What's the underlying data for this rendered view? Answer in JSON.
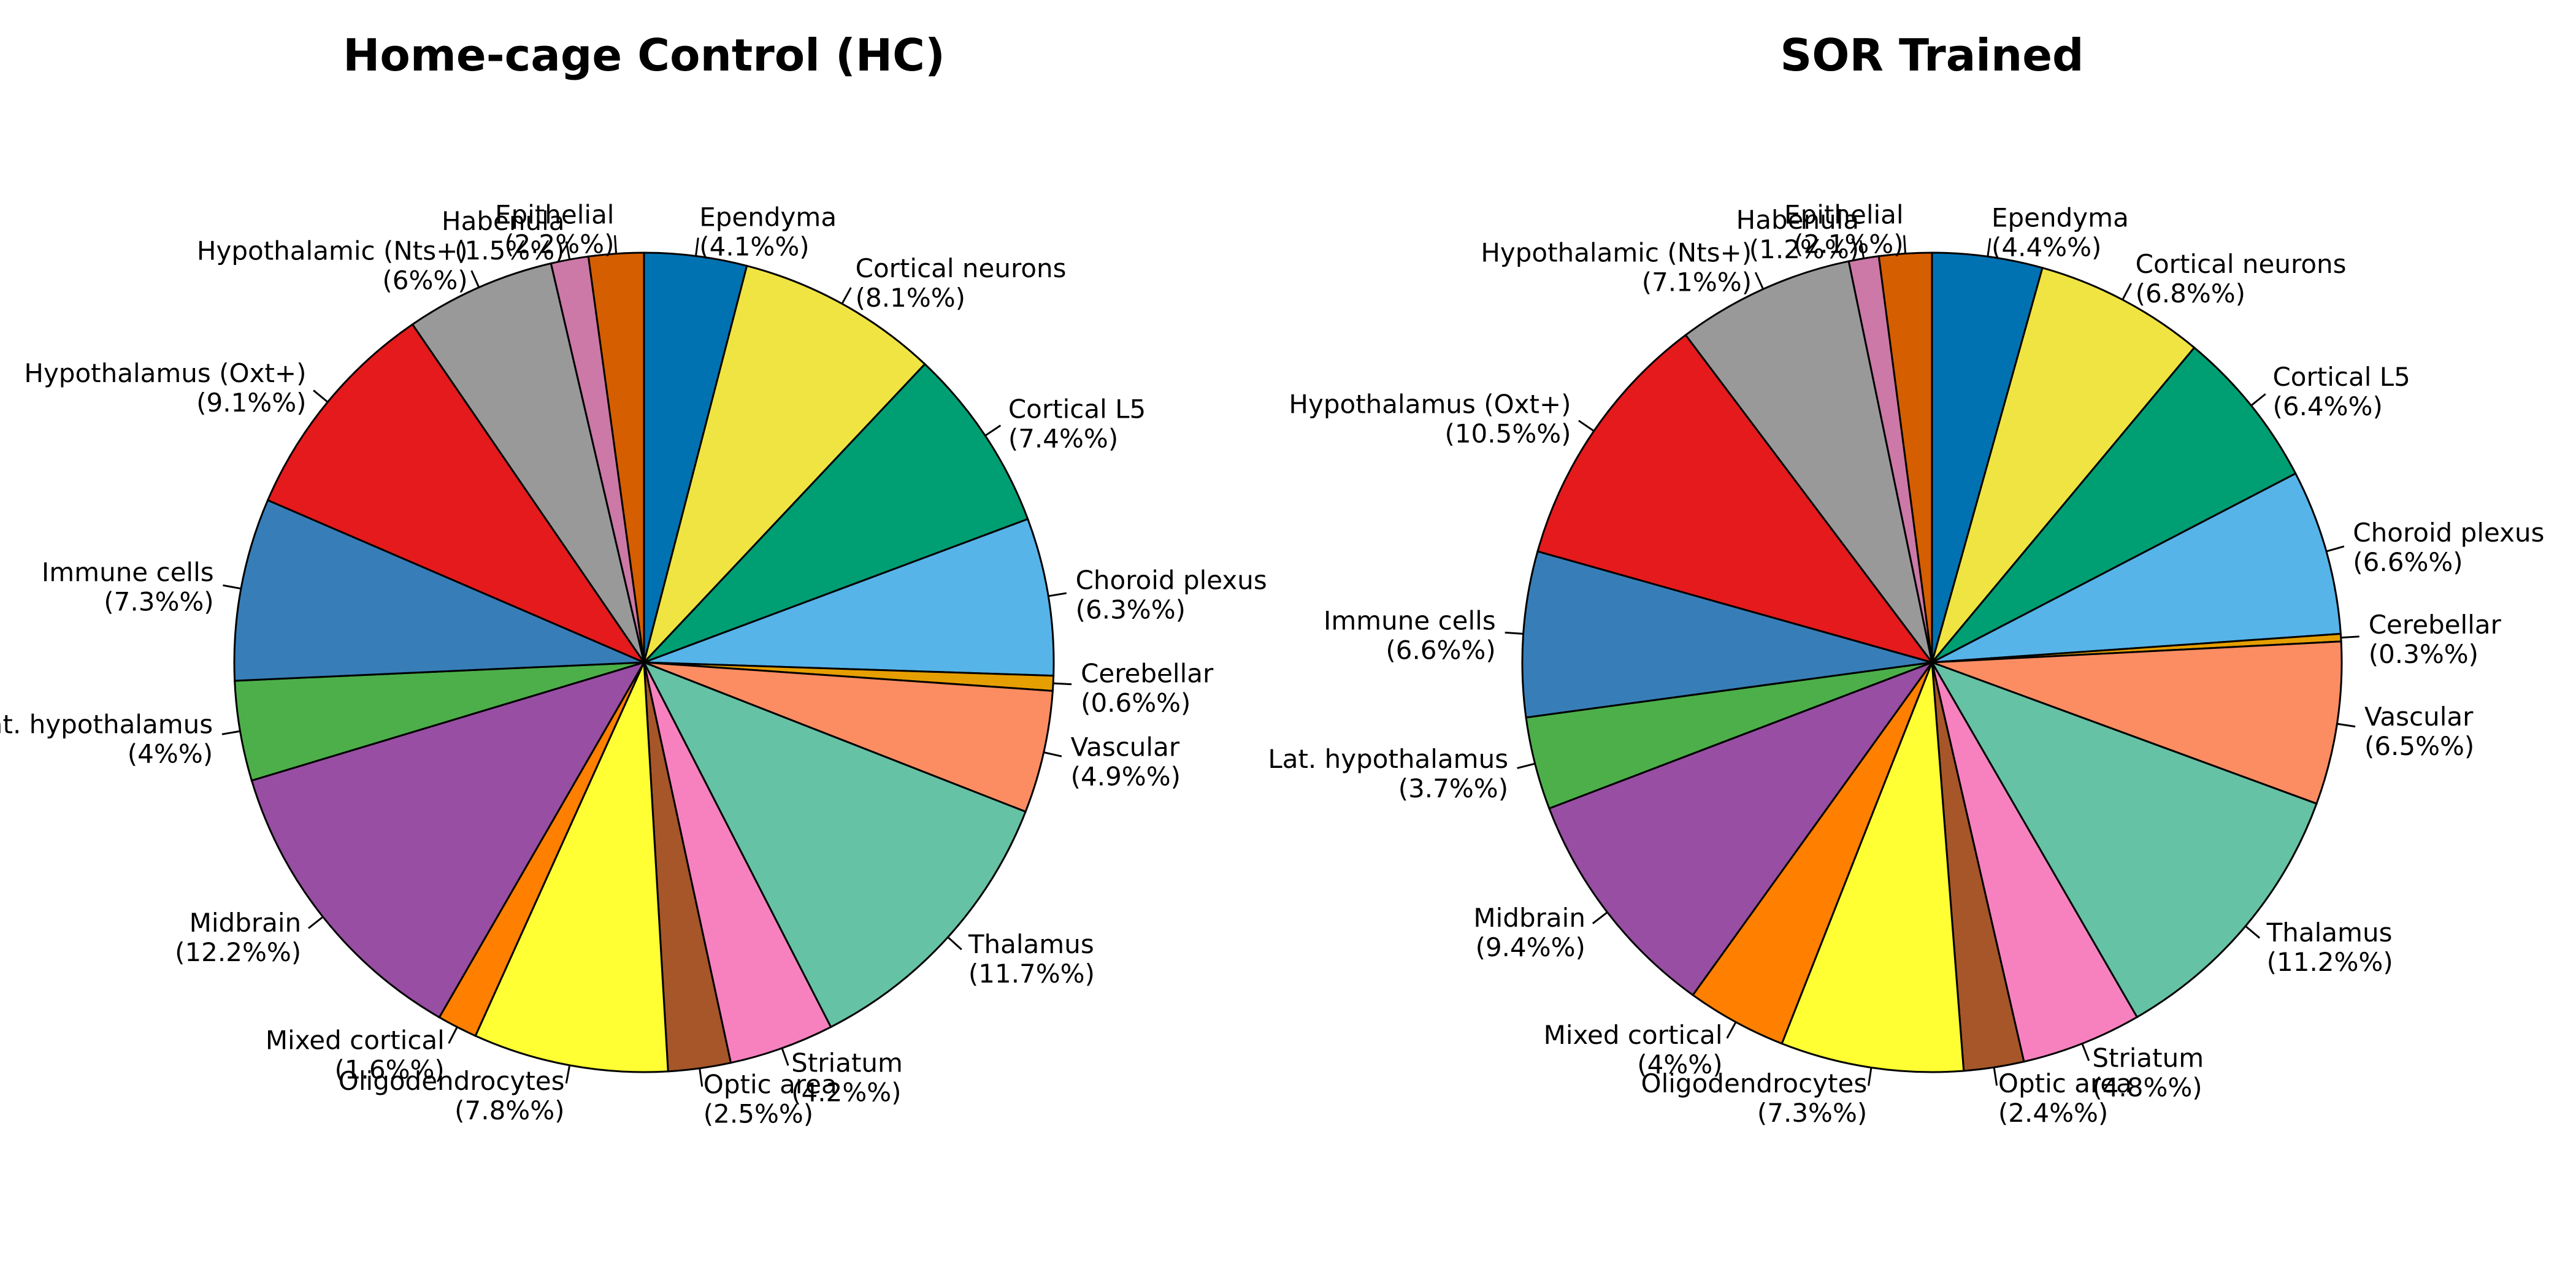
{
  "chart_data": [
    {
      "type": "pie",
      "title": "Home-cage Control (HC)",
      "slices": [
        {
          "label": "Ependyma",
          "value": 4.1,
          "pct_text": "(4.1%%)",
          "color": "#0072b2"
        },
        {
          "label": "Cortical neurons",
          "value": 8.1,
          "pct_text": "(8.1%%)",
          "color": "#f0e442"
        },
        {
          "label": "Cortical L5",
          "value": 7.4,
          "pct_text": "(7.4%%)",
          "color": "#009e73"
        },
        {
          "label": "Choroid plexus",
          "value": 6.3,
          "pct_text": "(6.3%%)",
          "color": "#56b4e9"
        },
        {
          "label": "Cerebellar",
          "value": 0.6,
          "pct_text": "(0.6%%)",
          "color": "#e69f00"
        },
        {
          "label": "Vascular",
          "value": 4.9,
          "pct_text": "(4.9%%)",
          "color": "#fc8d62"
        },
        {
          "label": "Thalamus",
          "value": 11.7,
          "pct_text": "(11.7%%)",
          "color": "#66c2a5"
        },
        {
          "label": "Striatum",
          "value": 4.2,
          "pct_text": "(4.2%%)",
          "color": "#f781bf"
        },
        {
          "label": "Optic area",
          "value": 2.5,
          "pct_text": "(2.5%%)",
          "color": "#a65628"
        },
        {
          "label": "Oligodendrocytes",
          "value": 7.8,
          "pct_text": "(7.8%%)",
          "color": "#ffff33"
        },
        {
          "label": "Mixed cortical",
          "value": 1.6,
          "pct_text": "(1.6%%)",
          "color": "#ff7f00"
        },
        {
          "label": "Midbrain",
          "value": 12.2,
          "pct_text": "(12.2%%)",
          "color": "#984ea3"
        },
        {
          "label": "Lat. hypothalamus",
          "value": 4.0,
          "pct_text": "(4%%)",
          "color": "#4daf4a"
        },
        {
          "label": "Immune cells",
          "value": 7.3,
          "pct_text": "(7.3%%)",
          "color": "#377eb8"
        },
        {
          "label": "Hypothalamus (Oxt+)",
          "value": 9.1,
          "pct_text": "(9.1%%)",
          "color": "#e41a1c"
        },
        {
          "label": "Hypothalamic (Nts+)",
          "value": 6.0,
          "pct_text": "(6%%)",
          "color": "#999999"
        },
        {
          "label": "Habenula",
          "value": 1.5,
          "pct_text": "(1.5%%)",
          "color": "#cc79a7"
        },
        {
          "label": "Epithelial",
          "value": 2.2,
          "pct_text": "(2.2%%)",
          "color": "#d55e00"
        }
      ]
    },
    {
      "type": "pie",
      "title": "SOR Trained",
      "slices": [
        {
          "label": "Ependyma",
          "value": 4.4,
          "pct_text": "(4.4%%)",
          "color": "#0072b2"
        },
        {
          "label": "Cortical neurons",
          "value": 6.8,
          "pct_text": "(6.8%%)",
          "color": "#f0e442"
        },
        {
          "label": "Cortical L5",
          "value": 6.4,
          "pct_text": "(6.4%%)",
          "color": "#009e73"
        },
        {
          "label": "Choroid plexus",
          "value": 6.6,
          "pct_text": "(6.6%%)",
          "color": "#56b4e9"
        },
        {
          "label": "Cerebellar",
          "value": 0.3,
          "pct_text": "(0.3%%)",
          "color": "#e69f00"
        },
        {
          "label": "Vascular",
          "value": 6.5,
          "pct_text": "(6.5%%)",
          "color": "#fc8d62"
        },
        {
          "label": "Thalamus",
          "value": 11.2,
          "pct_text": "(11.2%%)",
          "color": "#66c2a5"
        },
        {
          "label": "Striatum",
          "value": 4.8,
          "pct_text": "(4.8%%)",
          "color": "#f781bf"
        },
        {
          "label": "Optic area",
          "value": 2.4,
          "pct_text": "(2.4%%)",
          "color": "#a65628"
        },
        {
          "label": "Oligodendrocytes",
          "value": 7.3,
          "pct_text": "(7.3%%)",
          "color": "#ffff33"
        },
        {
          "label": "Mixed cortical",
          "value": 4.0,
          "pct_text": "(4%%)",
          "color": "#ff7f00"
        },
        {
          "label": "Midbrain",
          "value": 9.4,
          "pct_text": "(9.4%%)",
          "color": "#984ea3"
        },
        {
          "label": "Lat. hypothalamus",
          "value": 3.7,
          "pct_text": "(3.7%%)",
          "color": "#4daf4a"
        },
        {
          "label": "Immune cells",
          "value": 6.6,
          "pct_text": "(6.6%%)",
          "color": "#377eb8"
        },
        {
          "label": "Hypothalamus (Oxt+)",
          "value": 10.5,
          "pct_text": "(10.5%%)",
          "color": "#e41a1c"
        },
        {
          "label": "Hypothalamic (Nts+)",
          "value": 7.1,
          "pct_text": "(7.1%%)",
          "color": "#999999"
        },
        {
          "label": "Habenula",
          "value": 1.2,
          "pct_text": "(1.2%%)",
          "color": "#cc79a7"
        },
        {
          "label": "Epithelial",
          "value": 2.1,
          "pct_text": "(2.1%%)",
          "color": "#d55e00"
        }
      ]
    }
  ]
}
